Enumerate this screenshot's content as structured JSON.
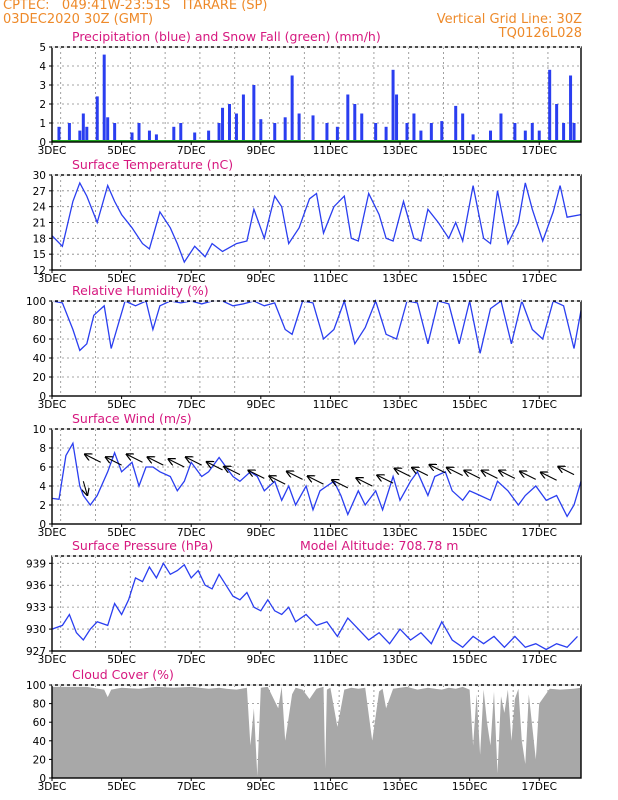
{
  "header": {
    "line1_left": "CPTEC:   049:41W-23:51S   ITARARE (SP)",
    "line2_left": "03DEC2020 30Z (GMT)",
    "line2_right": "Vertical Grid Line: 30Z",
    "line3_right": "TQ0126L028"
  },
  "colors": {
    "blue": "#2a3ef0",
    "green": "#1fa51f",
    "pink": "#d6187f",
    "orange": "#ee8a2a",
    "cloud": "#a8a8a8"
  },
  "x_labels": [
    "3DEC",
    "5DEC",
    "7DEC",
    "9DEC",
    "11DEC",
    "13DEC",
    "15DEC",
    "17DEC"
  ],
  "chart_data": [
    {
      "type": "bar",
      "title": "Precipitation (blue) and Snow Fall (green) (mm/h)",
      "ylim": [
        0,
        5
      ],
      "yticks": [
        0,
        1,
        2,
        3,
        4,
        5
      ],
      "xlim_days": [
        3,
        18.2
      ],
      "x": [
        3.2,
        3.5,
        3.8,
        3.9,
        4.0,
        4.3,
        4.5,
        4.6,
        4.8,
        5.3,
        5.5,
        5.8,
        6.0,
        6.5,
        6.7,
        7.1,
        7.5,
        7.8,
        7.9,
        8.1,
        8.3,
        8.5,
        8.8,
        9.0,
        9.4,
        9.7,
        9.9,
        10.1,
        10.5,
        10.9,
        11.2,
        11.5,
        11.7,
        11.9,
        12.3,
        12.6,
        12.8,
        12.9,
        13.2,
        13.4,
        13.6,
        13.9,
        14.2,
        14.6,
        14.8,
        15.1,
        15.6,
        15.9,
        16.3,
        16.6,
        16.8,
        17.0,
        17.3,
        17.5,
        17.7,
        17.9,
        18.0
      ],
      "values": [
        0.8,
        1.0,
        0.6,
        1.5,
        0.8,
        2.4,
        4.6,
        1.3,
        1.0,
        0.5,
        1.0,
        0.6,
        0.4,
        0.8,
        1.0,
        0.5,
        0.6,
        1.0,
        1.8,
        2.0,
        1.5,
        2.5,
        3.0,
        1.2,
        1.0,
        1.3,
        3.5,
        1.5,
        1.4,
        1.0,
        0.8,
        2.5,
        2.0,
        1.5,
        1.0,
        0.8,
        3.8,
        2.5,
        1.0,
        1.5,
        0.6,
        1.0,
        1.1,
        1.9,
        1.5,
        0.4,
        0.6,
        1.5,
        1.0,
        0.6,
        1.0,
        0.6,
        3.8,
        2.0,
        1.0,
        3.5,
        1.0
      ],
      "snow_values": 0
    },
    {
      "type": "line",
      "title": "Surface Temperature (nC)",
      "ylim": [
        12,
        30
      ],
      "yticks": [
        12,
        15,
        18,
        21,
        24,
        27,
        30
      ],
      "x": [
        3.0,
        3.3,
        3.6,
        3.8,
        4.0,
        4.3,
        4.6,
        4.8,
        5.0,
        5.3,
        5.6,
        5.8,
        6.1,
        6.4,
        6.6,
        6.8,
        7.1,
        7.4,
        7.6,
        7.9,
        8.3,
        8.6,
        8.8,
        9.1,
        9.4,
        9.6,
        9.8,
        10.1,
        10.4,
        10.6,
        10.8,
        11.1,
        11.4,
        11.6,
        11.8,
        12.1,
        12.4,
        12.6,
        12.8,
        13.1,
        13.4,
        13.6,
        13.8,
        14.1,
        14.4,
        14.6,
        14.8,
        15.1,
        15.4,
        15.6,
        15.8,
        16.1,
        16.4,
        16.6,
        16.8,
        17.1,
        17.4,
        17.6,
        17.8,
        18.2
      ],
      "values": [
        18.5,
        16.5,
        25.0,
        28.5,
        26.0,
        21.0,
        28.0,
        25.0,
        22.5,
        20.0,
        17.0,
        16.0,
        23.0,
        20.0,
        17.0,
        13.5,
        16.5,
        14.5,
        17.0,
        15.5,
        17.0,
        17.5,
        23.5,
        18.0,
        26.0,
        24.0,
        17.0,
        20.0,
        25.5,
        26.5,
        19.0,
        24.0,
        26.0,
        18.0,
        17.5,
        26.5,
        22.5,
        18.0,
        17.5,
        25.0,
        18.0,
        17.5,
        23.5,
        21.0,
        18.0,
        21.0,
        17.5,
        28.0,
        18.0,
        17.0,
        27.0,
        17.0,
        21.0,
        28.5,
        23.5,
        17.5,
        23.0,
        28.0,
        22.0,
        22.5
      ]
    },
    {
      "type": "line",
      "title": "Relative Humidity (%)",
      "ylim": [
        0,
        100
      ],
      "yticks": [
        0,
        20,
        40,
        60,
        80,
        100
      ],
      "x": [
        3.0,
        3.3,
        3.6,
        3.8,
        4.0,
        4.2,
        4.5,
        4.7,
        4.9,
        5.1,
        5.4,
        5.7,
        5.9,
        6.1,
        6.4,
        6.7,
        7.0,
        7.3,
        7.6,
        7.9,
        8.2,
        8.5,
        8.8,
        9.1,
        9.4,
        9.7,
        9.9,
        10.2,
        10.5,
        10.8,
        11.1,
        11.4,
        11.7,
        12.0,
        12.3,
        12.6,
        12.9,
        13.2,
        13.5,
        13.8,
        14.1,
        14.4,
        14.7,
        15.0,
        15.3,
        15.6,
        15.9,
        16.2,
        16.5,
        16.8,
        17.1,
        17.4,
        17.7,
        18.0,
        18.2
      ],
      "values": [
        100,
        98,
        70,
        48,
        55,
        85,
        95,
        50,
        75,
        100,
        95,
        100,
        70,
        95,
        100,
        98,
        100,
        97,
        100,
        100,
        95,
        97,
        100,
        95,
        98,
        70,
        65,
        100,
        98,
        60,
        70,
        100,
        55,
        72,
        100,
        65,
        60,
        100,
        98,
        55,
        100,
        97,
        55,
        100,
        45,
        92,
        100,
        55,
        100,
        70,
        60,
        100,
        95,
        50,
        90
      ]
    },
    {
      "type": "line",
      "title": "Surface Wind (m/s)",
      "ylim": [
        0,
        10
      ],
      "yticks": [
        0,
        2,
        4,
        6,
        8,
        10
      ],
      "x": [
        3.0,
        3.2,
        3.4,
        3.6,
        3.8,
        3.9,
        4.1,
        4.3,
        4.6,
        4.8,
        5.0,
        5.3,
        5.5,
        5.7,
        5.9,
        6.1,
        6.4,
        6.6,
        6.8,
        7.0,
        7.3,
        7.5,
        7.8,
        8.0,
        8.2,
        8.4,
        8.7,
        8.9,
        9.1,
        9.4,
        9.6,
        9.8,
        10.0,
        10.3,
        10.5,
        10.7,
        10.9,
        11.1,
        11.3,
        11.5,
        11.8,
        12.0,
        12.3,
        12.5,
        12.8,
        13.0,
        13.3,
        13.5,
        13.8,
        14.0,
        14.3,
        14.5,
        14.8,
        15.0,
        15.3,
        15.6,
        15.8,
        16.1,
        16.4,
        16.6,
        16.9,
        17.2,
        17.5,
        17.8,
        18.0,
        18.2
      ],
      "values": [
        2.7,
        2.6,
        7.2,
        8.5,
        4.0,
        3.0,
        2.0,
        3.0,
        5.5,
        7.5,
        5.5,
        6.5,
        4.0,
        6.0,
        6.0,
        5.5,
        5.0,
        3.5,
        4.5,
        6.5,
        5.0,
        5.5,
        7.0,
        6.0,
        5.0,
        4.5,
        5.5,
        5.0,
        3.5,
        4.5,
        2.5,
        4.0,
        2.0,
        4.0,
        1.5,
        3.5,
        4.0,
        4.5,
        3.0,
        1.0,
        3.5,
        2.0,
        3.5,
        1.5,
        5.0,
        2.5,
        4.5,
        5.5,
        3.0,
        5.0,
        5.5,
        3.5,
        2.5,
        3.5,
        3.0,
        2.5,
        4.5,
        3.5,
        2.0,
        3.0,
        4.0,
        2.5,
        3.0,
        0.8,
        2.0,
        4.5
      ],
      "vectors": [
        {
          "x": 3.9,
          "y": 4.5,
          "dir": "down"
        },
        {
          "x": 4.4,
          "y": 6.5,
          "dir": "up-left"
        },
        {
          "x": 5.0,
          "y": 6.2,
          "dir": "up-left"
        },
        {
          "x": 5.6,
          "y": 6.5,
          "dir": "up-left"
        },
        {
          "x": 6.2,
          "y": 6.2,
          "dir": "up-left"
        },
        {
          "x": 6.8,
          "y": 6.0,
          "dir": "up-left"
        },
        {
          "x": 7.3,
          "y": 6.2,
          "dir": "up-left"
        },
        {
          "x": 7.9,
          "y": 5.7,
          "dir": "up-left"
        },
        {
          "x": 8.4,
          "y": 5.2,
          "dir": "up-left"
        },
        {
          "x": 9.1,
          "y": 4.8,
          "dir": "up-left"
        },
        {
          "x": 9.7,
          "y": 4.2,
          "dir": "up-left"
        },
        {
          "x": 10.2,
          "y": 4.7,
          "dir": "up-left"
        },
        {
          "x": 10.8,
          "y": 4.2,
          "dir": "up-left"
        },
        {
          "x": 11.5,
          "y": 3.8,
          "dir": "up-left"
        },
        {
          "x": 12.2,
          "y": 4.0,
          "dir": "up-left"
        },
        {
          "x": 12.8,
          "y": 4.3,
          "dir": "up-left"
        },
        {
          "x": 13.3,
          "y": 5.0,
          "dir": "up-left"
        },
        {
          "x": 13.8,
          "y": 5.1,
          "dir": "up-left"
        },
        {
          "x": 14.3,
          "y": 5.4,
          "dir": "up-left"
        },
        {
          "x": 14.8,
          "y": 5.1,
          "dir": "up-left"
        },
        {
          "x": 15.3,
          "y": 4.8,
          "dir": "up-left"
        },
        {
          "x": 15.8,
          "y": 4.8,
          "dir": "up-left"
        },
        {
          "x": 16.3,
          "y": 4.8,
          "dir": "up-left"
        },
        {
          "x": 16.9,
          "y": 4.7,
          "dir": "up-left"
        },
        {
          "x": 17.5,
          "y": 4.6,
          "dir": "up-left"
        },
        {
          "x": 18.0,
          "y": 5.2,
          "dir": "up-left"
        }
      ]
    },
    {
      "type": "line",
      "title": "Surface Pressure (hPa)",
      "annotation": "Model Altitude: 708.78 m",
      "ylim": [
        927,
        940
      ],
      "yticks": [
        927,
        930,
        933,
        936,
        939
      ],
      "x": [
        3.0,
        3.3,
        3.5,
        3.7,
        3.9,
        4.1,
        4.3,
        4.6,
        4.8,
        5.0,
        5.2,
        5.4,
        5.6,
        5.8,
        6.0,
        6.2,
        6.4,
        6.6,
        6.8,
        7.0,
        7.2,
        7.4,
        7.6,
        7.8,
        8.0,
        8.2,
        8.4,
        8.6,
        8.8,
        9.0,
        9.2,
        9.4,
        9.6,
        9.8,
        10.0,
        10.3,
        10.6,
        10.9,
        11.2,
        11.5,
        11.8,
        12.1,
        12.4,
        12.7,
        13.0,
        13.3,
        13.6,
        13.9,
        14.2,
        14.5,
        14.8,
        15.1,
        15.4,
        15.7,
        16.0,
        16.3,
        16.6,
        16.9,
        17.2,
        17.5,
        17.8,
        18.1
      ],
      "values": [
        930.0,
        930.5,
        932.0,
        929.5,
        928.5,
        930.0,
        931.0,
        930.5,
        933.5,
        932.0,
        934.0,
        937.0,
        936.5,
        938.5,
        937.0,
        939.0,
        937.5,
        938.0,
        938.8,
        937.0,
        938.0,
        936.0,
        935.5,
        937.5,
        936.0,
        934.5,
        934.0,
        935.0,
        933.0,
        932.5,
        934.0,
        932.5,
        932.0,
        933.0,
        931.0,
        932.0,
        930.5,
        931.0,
        929.0,
        931.5,
        930.0,
        928.5,
        929.5,
        928.0,
        930.0,
        928.5,
        929.5,
        928.0,
        931.0,
        928.5,
        927.5,
        929.0,
        928.0,
        929.0,
        927.5,
        929.0,
        927.5,
        928.0,
        927.2,
        928.0,
        927.5,
        929.0
      ]
    },
    {
      "type": "area",
      "title": "Cloud Cover (%)",
      "ylim": [
        0,
        100
      ],
      "yticks": [
        0,
        20,
        40,
        60,
        80,
        100
      ],
      "x": [
        3.0,
        4.0,
        4.5,
        4.6,
        4.7,
        5.0,
        5.5,
        6.0,
        6.5,
        7.0,
        7.5,
        7.8,
        8.0,
        8.3,
        8.6,
        8.7,
        8.8,
        8.9,
        9.0,
        9.2,
        9.5,
        9.6,
        9.7,
        9.9,
        10.0,
        10.2,
        10.4,
        10.6,
        10.8,
        10.85,
        10.9,
        11.0,
        11.2,
        11.4,
        11.6,
        11.8,
        12.0,
        12.2,
        12.4,
        12.5,
        12.6,
        12.8,
        13.0,
        13.2,
        13.5,
        13.8,
        14.0,
        14.2,
        14.4,
        14.6,
        14.8,
        15.0,
        15.1,
        15.2,
        15.3,
        15.4,
        15.5,
        15.6,
        15.7,
        15.8,
        15.9,
        16.0,
        16.1,
        16.2,
        16.3,
        16.4,
        16.5,
        16.6,
        16.7,
        16.8,
        16.9,
        17.0,
        17.3,
        17.6,
        18.0,
        18.2
      ],
      "values": [
        98,
        98,
        95,
        87,
        95,
        97,
        96,
        98,
        97,
        98,
        96,
        97,
        96,
        95,
        97,
        35,
        75,
        2,
        97,
        98,
        75,
        98,
        40,
        90,
        97,
        95,
        85,
        96,
        98,
        10,
        95,
        97,
        55,
        95,
        97,
        96,
        97,
        40,
        93,
        96,
        75,
        96,
        97,
        98,
        95,
        97,
        96,
        95,
        97,
        96,
        98,
        95,
        35,
        90,
        25,
        95,
        60,
        35,
        93,
        5,
        88,
        70,
        95,
        40,
        85,
        96,
        40,
        15,
        90,
        55,
        20,
        80,
        96,
        95,
        96,
        97
      ]
    }
  ]
}
